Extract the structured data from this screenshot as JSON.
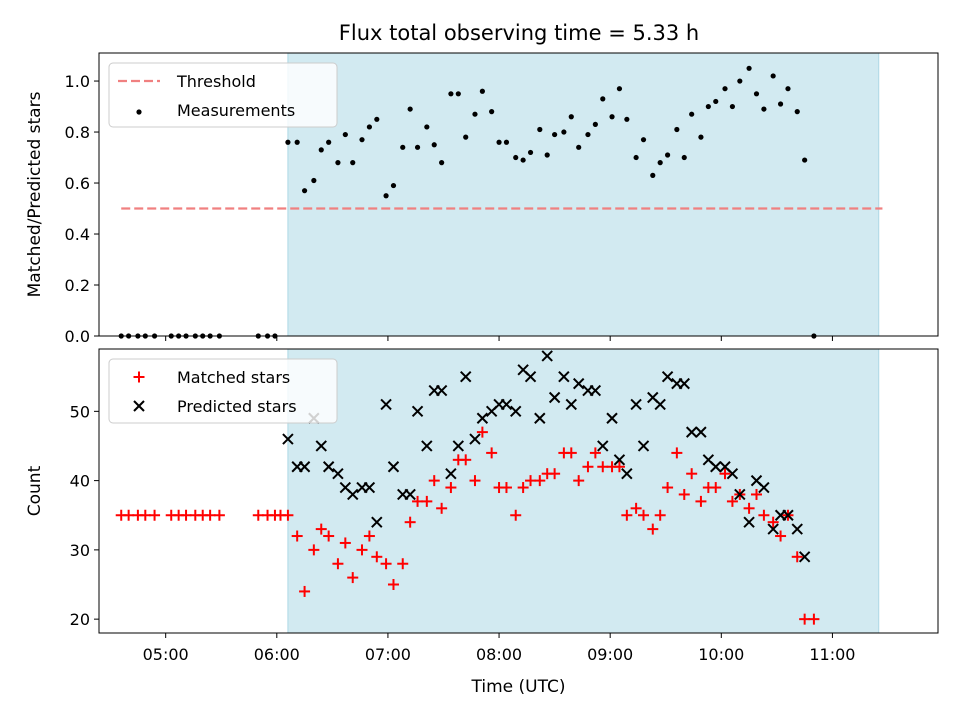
{
  "title": "Flux total observing time = 5.33 h",
  "colors": {
    "observing_span": "#add8e6",
    "threshold": "#f08080",
    "measurements": "#000000",
    "matched": "#ff0000",
    "predicted": "#000000"
  },
  "chart_data": [
    {
      "type": "scatter",
      "ylabel": "Matched/Predicted stars",
      "xlim": [
        "04:24",
        "11:57"
      ],
      "ylim": [
        0,
        1.11
      ],
      "yticks": [
        "0.0",
        "0.2",
        "0.4",
        "0.6",
        "0.8",
        "1.0"
      ],
      "legend_placement": "top-left",
      "shaded_span": [
        "06:06",
        "11:25"
      ],
      "threshold": {
        "name": "Threshold",
        "value": 0.5,
        "x_range": [
          "04:36",
          "11:27"
        ]
      },
      "series": [
        {
          "name": "Measurements",
          "points": [
            [
              "04:36",
              0.0
            ],
            [
              "04:40",
              0.0
            ],
            [
              "04:45",
              0.0
            ],
            [
              "04:49",
              0.0
            ],
            [
              "04:54",
              0.0
            ],
            [
              "05:03",
              0.0
            ],
            [
              "05:07",
              0.0
            ],
            [
              "05:11",
              0.0
            ],
            [
              "05:16",
              0.0
            ],
            [
              "05:20",
              0.0
            ],
            [
              "05:24",
              0.0
            ],
            [
              "05:29",
              0.0
            ],
            [
              "05:50",
              0.0
            ],
            [
              "05:55",
              0.0
            ],
            [
              "05:59",
              0.0
            ],
            [
              "06:06",
              0.76
            ],
            [
              "06:11",
              0.76
            ],
            [
              "06:15",
              0.57
            ],
            [
              "06:20",
              0.61
            ],
            [
              "06:24",
              0.73
            ],
            [
              "06:28",
              0.76
            ],
            [
              "06:33",
              0.68
            ],
            [
              "06:37",
              0.79
            ],
            [
              "06:41",
              0.68
            ],
            [
              "06:46",
              0.77
            ],
            [
              "06:50",
              0.82
            ],
            [
              "06:54",
              0.85
            ],
            [
              "06:59",
              0.55
            ],
            [
              "07:03",
              0.59
            ],
            [
              "07:08",
              0.74
            ],
            [
              "07:12",
              0.89
            ],
            [
              "07:16",
              0.74
            ],
            [
              "07:21",
              0.82
            ],
            [
              "07:25",
              0.75
            ],
            [
              "07:29",
              0.68
            ],
            [
              "07:34",
              0.95
            ],
            [
              "07:38",
              0.95
            ],
            [
              "07:42",
              0.78
            ],
            [
              "07:47",
              0.87
            ],
            [
              "07:51",
              0.96
            ],
            [
              "07:56",
              0.88
            ],
            [
              "08:00",
              0.76
            ],
            [
              "08:04",
              0.76
            ],
            [
              "08:09",
              0.7
            ],
            [
              "08:13",
              0.69
            ],
            [
              "08:17",
              0.72
            ],
            [
              "08:22",
              0.81
            ],
            [
              "08:26",
              0.71
            ],
            [
              "08:30",
              0.79
            ],
            [
              "08:35",
              0.8
            ],
            [
              "08:39",
              0.86
            ],
            [
              "08:43",
              0.74
            ],
            [
              "08:48",
              0.79
            ],
            [
              "08:52",
              0.83
            ],
            [
              "08:56",
              0.93
            ],
            [
              "09:01",
              0.86
            ],
            [
              "09:05",
              0.97
            ],
            [
              "09:09",
              0.85
            ],
            [
              "09:14",
              0.7
            ],
            [
              "09:18",
              0.77
            ],
            [
              "09:23",
              0.63
            ],
            [
              "09:27",
              0.68
            ],
            [
              "09:31",
              0.71
            ],
            [
              "09:36",
              0.81
            ],
            [
              "09:40",
              0.7
            ],
            [
              "09:44",
              0.87
            ],
            [
              "09:49",
              0.78
            ],
            [
              "09:53",
              0.9
            ],
            [
              "09:57",
              0.92
            ],
            [
              "10:02",
              0.97
            ],
            [
              "10:06",
              0.9
            ],
            [
              "10:10",
              1.0
            ],
            [
              "10:15",
              1.05
            ],
            [
              "10:19",
              0.95
            ],
            [
              "10:23",
              0.89
            ],
            [
              "10:28",
              1.02
            ],
            [
              "10:32",
              0.91
            ],
            [
              "10:36",
              0.97
            ],
            [
              "10:41",
              0.88
            ],
            [
              "10:45",
              0.69
            ],
            [
              "10:50",
              0.0
            ]
          ]
        }
      ]
    },
    {
      "type": "scatter",
      "xlabel": "Time (UTC)",
      "ylabel": "Count",
      "xlim": [
        "04:24",
        "11:57"
      ],
      "ylim": [
        18,
        59
      ],
      "yticks": [
        "20",
        "30",
        "40",
        "50"
      ],
      "xticks": [
        "05:00",
        "06:00",
        "07:00",
        "08:00",
        "09:00",
        "10:00",
        "11:00"
      ],
      "legend_placement": "top-left",
      "shaded_span": [
        "06:06",
        "11:25"
      ],
      "series": [
        {
          "name": "Matched stars",
          "points": [
            [
              "04:36",
              35
            ],
            [
              "04:40",
              35
            ],
            [
              "04:45",
              35
            ],
            [
              "04:49",
              35
            ],
            [
              "04:54",
              35
            ],
            [
              "05:03",
              35
            ],
            [
              "05:07",
              35
            ],
            [
              "05:11",
              35
            ],
            [
              "05:16",
              35
            ],
            [
              "05:20",
              35
            ],
            [
              "05:24",
              35
            ],
            [
              "05:29",
              35
            ],
            [
              "05:50",
              35
            ],
            [
              "05:55",
              35
            ],
            [
              "05:59",
              35
            ],
            [
              "06:02",
              35
            ],
            [
              "06:06",
              35
            ],
            [
              "06:11",
              32
            ],
            [
              "06:15",
              24
            ],
            [
              "06:20",
              30
            ],
            [
              "06:24",
              33
            ],
            [
              "06:28",
              32
            ],
            [
              "06:33",
              28
            ],
            [
              "06:37",
              31
            ],
            [
              "06:41",
              26
            ],
            [
              "06:46",
              30
            ],
            [
              "06:50",
              32
            ],
            [
              "06:54",
              29
            ],
            [
              "06:59",
              28
            ],
            [
              "07:03",
              25
            ],
            [
              "07:08",
              28
            ],
            [
              "07:12",
              34
            ],
            [
              "07:16",
              37
            ],
            [
              "07:21",
              37
            ],
            [
              "07:25",
              40
            ],
            [
              "07:29",
              36
            ],
            [
              "07:34",
              39
            ],
            [
              "07:38",
              43
            ],
            [
              "07:42",
              43
            ],
            [
              "07:47",
              40
            ],
            [
              "07:51",
              47
            ],
            [
              "07:56",
              44
            ],
            [
              "08:00",
              39
            ],
            [
              "08:04",
              39
            ],
            [
              "08:09",
              35
            ],
            [
              "08:13",
              39
            ],
            [
              "08:17",
              40
            ],
            [
              "08:22",
              40
            ],
            [
              "08:26",
              41
            ],
            [
              "08:30",
              41
            ],
            [
              "08:35",
              44
            ],
            [
              "08:39",
              44
            ],
            [
              "08:43",
              40
            ],
            [
              "08:48",
              42
            ],
            [
              "08:52",
              44
            ],
            [
              "08:56",
              42
            ],
            [
              "09:01",
              42
            ],
            [
              "09:05",
              42
            ],
            [
              "09:09",
              35
            ],
            [
              "09:14",
              36
            ],
            [
              "09:18",
              35
            ],
            [
              "09:23",
              33
            ],
            [
              "09:27",
              35
            ],
            [
              "09:31",
              39
            ],
            [
              "09:36",
              44
            ],
            [
              "09:40",
              38
            ],
            [
              "09:44",
              41
            ],
            [
              "09:49",
              37
            ],
            [
              "09:53",
              39
            ],
            [
              "09:57",
              39
            ],
            [
              "10:02",
              41
            ],
            [
              "10:06",
              37
            ],
            [
              "10:10",
              38
            ],
            [
              "10:15",
              36
            ],
            [
              "10:19",
              38
            ],
            [
              "10:23",
              35
            ],
            [
              "10:28",
              34
            ],
            [
              "10:32",
              32
            ],
            [
              "10:36",
              35
            ],
            [
              "10:41",
              29
            ],
            [
              "10:45",
              20
            ],
            [
              "10:50",
              20
            ]
          ]
        },
        {
          "name": "Predicted stars",
          "points": [
            [
              "06:06",
              46
            ],
            [
              "06:11",
              42
            ],
            [
              "06:15",
              42
            ],
            [
              "06:20",
              49
            ],
            [
              "06:24",
              45
            ],
            [
              "06:28",
              42
            ],
            [
              "06:33",
              41
            ],
            [
              "06:37",
              39
            ],
            [
              "06:41",
              38
            ],
            [
              "06:46",
              39
            ],
            [
              "06:50",
              39
            ],
            [
              "06:54",
              34
            ],
            [
              "06:59",
              51
            ],
            [
              "07:03",
              42
            ],
            [
              "07:08",
              38
            ],
            [
              "07:12",
              38
            ],
            [
              "07:16",
              50
            ],
            [
              "07:21",
              45
            ],
            [
              "07:25",
              53
            ],
            [
              "07:29",
              53
            ],
            [
              "07:34",
              41
            ],
            [
              "07:38",
              45
            ],
            [
              "07:42",
              55
            ],
            [
              "07:47",
              46
            ],
            [
              "07:51",
              49
            ],
            [
              "07:56",
              50
            ],
            [
              "08:00",
              51
            ],
            [
              "08:04",
              51
            ],
            [
              "08:09",
              50
            ],
            [
              "08:13",
              56
            ],
            [
              "08:17",
              55
            ],
            [
              "08:22",
              49
            ],
            [
              "08:26",
              58
            ],
            [
              "08:30",
              52
            ],
            [
              "08:35",
              55
            ],
            [
              "08:39",
              51
            ],
            [
              "08:43",
              54
            ],
            [
              "08:48",
              53
            ],
            [
              "08:52",
              53
            ],
            [
              "08:56",
              45
            ],
            [
              "09:01",
              49
            ],
            [
              "09:05",
              43
            ],
            [
              "09:09",
              41
            ],
            [
              "09:14",
              51
            ],
            [
              "09:18",
              45
            ],
            [
              "09:23",
              52
            ],
            [
              "09:27",
              51
            ],
            [
              "09:31",
              55
            ],
            [
              "09:36",
              54
            ],
            [
              "09:40",
              54
            ],
            [
              "09:44",
              47
            ],
            [
              "09:49",
              47
            ],
            [
              "09:53",
              43
            ],
            [
              "09:57",
              42
            ],
            [
              "10:02",
              42
            ],
            [
              "10:06",
              41
            ],
            [
              "10:10",
              38
            ],
            [
              "10:15",
              34
            ],
            [
              "10:19",
              40
            ],
            [
              "10:23",
              39
            ],
            [
              "10:28",
              33
            ],
            [
              "10:32",
              35
            ],
            [
              "10:36",
              35
            ],
            [
              "10:41",
              33
            ],
            [
              "10:45",
              29
            ]
          ]
        }
      ]
    }
  ]
}
